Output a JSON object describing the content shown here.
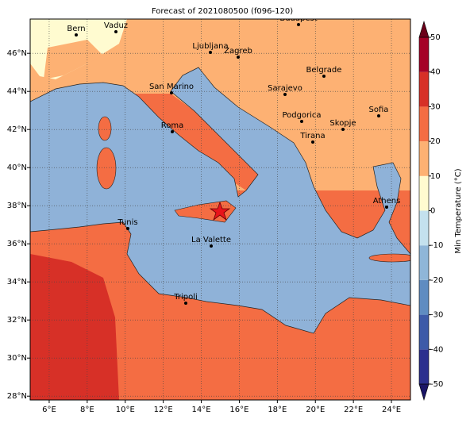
{
  "title": "Forecast of 2021080500 (f096-120)",
  "map": {
    "xlim": [
      5,
      25
    ],
    "ylim": [
      27.8,
      47.8
    ],
    "xticks": [
      {
        "value": 6,
        "label": "6°E"
      },
      {
        "value": 8,
        "label": "8°E"
      },
      {
        "value": 10,
        "label": "10°E"
      },
      {
        "value": 12,
        "label": "12°E"
      },
      {
        "value": 14,
        "label": "14°E"
      },
      {
        "value": 16,
        "label": "16°E"
      },
      {
        "value": 18,
        "label": "18°E"
      },
      {
        "value": 20,
        "label": "20°E"
      },
      {
        "value": 22,
        "label": "22°E"
      },
      {
        "value": 24,
        "label": "24°E"
      }
    ],
    "yticks": [
      {
        "value": 28,
        "label": "28°N"
      },
      {
        "value": 30,
        "label": "30°N"
      },
      {
        "value": 32,
        "label": "32°N"
      },
      {
        "value": 34,
        "label": "34°N"
      },
      {
        "value": 36,
        "label": "36°N"
      },
      {
        "value": 38,
        "label": "38°N"
      },
      {
        "value": 40,
        "label": "40°N"
      },
      {
        "value": 42,
        "label": "42°N"
      },
      {
        "value": 44,
        "label": "44°N"
      },
      {
        "value": 46,
        "label": "46°N"
      }
    ],
    "grid": true
  },
  "cities": [
    "Bern",
    "Vaduz",
    "Budapest",
    "Ljubljana",
    "Zagreb",
    "Belgrade",
    "San Marino",
    "Sarajevo",
    "Sofia",
    "Podgorica",
    "Skopje",
    "Roma",
    "Tirana",
    "Athens",
    "Tunis",
    "La Valette",
    "Tripoli"
  ],
  "colorbar": {
    "label": "Min Temperature (°C)",
    "ticks": [
      -50,
      -40,
      -30,
      -20,
      -10,
      0,
      10,
      20,
      30,
      40,
      50
    ],
    "colors": [
      "#2b2f8e",
      "#3d5aa8",
      "#5f8cc1",
      "#8fb6d8",
      "#c4e1ee",
      "#fffbd0",
      "#fdb173",
      "#f46d43",
      "#d73027",
      "#a50026"
    ],
    "extend_colors": [
      "#1a1566",
      "#6b001a"
    ]
  }
}
